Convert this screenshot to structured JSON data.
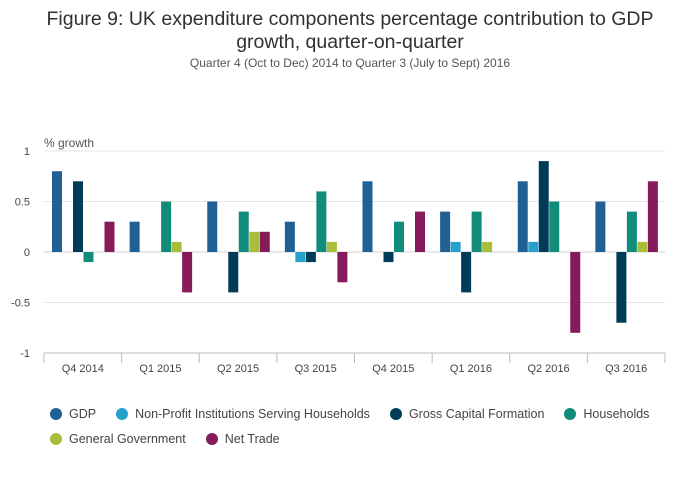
{
  "chart_data": {
    "type": "bar",
    "title": "Figure 9: UK expenditure components percentage contribution to GDP growth, quarter-on-quarter",
    "title_line1": "Figure 9: UK expenditure components percentage contribution to GDP",
    "title_line2": "growth, quarter-on-quarter",
    "subtitle": "Quarter 4 (Oct to Dec) 2014 to Quarter 3 (July to Sept) 2016",
    "ylabel": "% growth",
    "xlabel": "",
    "ylim": [
      -1,
      1
    ],
    "yticks": [
      1,
      0.5,
      0,
      -0.5,
      -1
    ],
    "ytick_labels": [
      "1",
      "0.5",
      "0",
      "-0.5",
      "-1"
    ],
    "categories": [
      "Q4 2014",
      "Q1 2015",
      "Q2 2015",
      "Q3 2015",
      "Q4 2015",
      "Q1 2016",
      "Q2 2016",
      "Q3 2016"
    ],
    "grid": true,
    "legend_position": "bottom",
    "series": [
      {
        "name": "GDP",
        "color": "#206095",
        "values": [
          0.8,
          0.3,
          0.5,
          0.3,
          0.7,
          0.4,
          0.7,
          0.5
        ]
      },
      {
        "name": "Non-Profit Institutions Serving Households",
        "color": "#27a0cc",
        "values": [
          0,
          0,
          0,
          -0.1,
          0,
          0.1,
          0.1,
          0
        ]
      },
      {
        "name": "Gross Capital Formation",
        "color": "#003c57",
        "values": [
          0.7,
          0,
          -0.4,
          -0.1,
          -0.1,
          -0.4,
          0.9,
          -0.7
        ]
      },
      {
        "name": "Households",
        "color": "#118c7b",
        "values": [
          -0.1,
          0.5,
          0.4,
          0.6,
          0.3,
          0.4,
          0.5,
          0.4
        ]
      },
      {
        "name": "General Government",
        "color": "#a8bd3a",
        "values": [
          0,
          0.1,
          0.2,
          0.1,
          0,
          0.1,
          0,
          0.1
        ]
      },
      {
        "name": "Net Trade",
        "color": "#871a5b",
        "values": [
          0.3,
          -0.4,
          0.2,
          -0.3,
          0.4,
          0,
          -0.8,
          0.7
        ]
      }
    ]
  }
}
